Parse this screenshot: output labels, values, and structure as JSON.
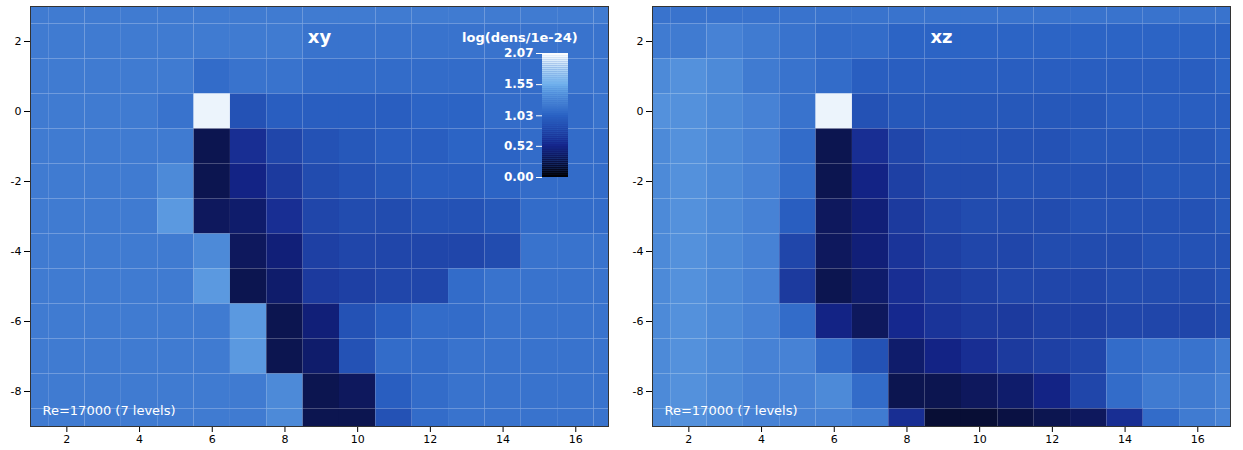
{
  "chart_data": [
    {
      "type": "heatmap",
      "title": "xy",
      "annotation": "Re=17000 (7 levels)",
      "x": [
        1,
        2,
        3,
        4,
        5,
        6,
        7,
        8,
        9,
        10,
        11,
        12,
        13,
        14,
        15,
        16,
        17
      ],
      "y": [
        3,
        2,
        1,
        0,
        -1,
        -2,
        -3,
        -4,
        -5,
        -6,
        -7,
        -8,
        -9
      ],
      "xlim": [
        1,
        16.9
      ],
      "ylim": [
        -9,
        3
      ],
      "xticks": [
        2,
        4,
        6,
        8,
        10,
        12,
        14,
        16
      ],
      "yticks": [
        -8,
        -6,
        -4,
        -2,
        0,
        2
      ],
      "colorbar": {
        "title": "log(dens/1e-24)",
        "range": [
          0,
          2.07
        ],
        "ticks": [
          {
            "value": 0,
            "label": "0.00"
          },
          {
            "value": 0.52,
            "label": "0.52"
          },
          {
            "value": 1.03,
            "label": "1.03"
          },
          {
            "value": 1.55,
            "label": "1.55"
          },
          {
            "value": 2.07,
            "label": "2.07"
          }
        ]
      },
      "values": [
        [
          1.2,
          1.2,
          1.2,
          1.2,
          1.2,
          1.2,
          1.2,
          1.2,
          1.2,
          1.2,
          1.2,
          1.2,
          1.2,
          1.2,
          1.2,
          1.2,
          1.2
        ],
        [
          1.2,
          1.2,
          1.2,
          1.2,
          1.2,
          1.2,
          1.2,
          1.2,
          1.15,
          1.15,
          1.15,
          1.15,
          1.15,
          1.15,
          1.15,
          1.15,
          1.15
        ],
        [
          1.2,
          1.2,
          1.2,
          1.2,
          1.2,
          1.1,
          1.15,
          1.15,
          1.1,
          1.1,
          1.1,
          1.1,
          1.1,
          1.1,
          1.1,
          1.15,
          1.15
        ],
        [
          1.2,
          1.2,
          1.2,
          1.2,
          1.15,
          2.0,
          0.9,
          1.0,
          1.0,
          1.0,
          1.0,
          1.05,
          1.05,
          1.1,
          1.1,
          1.1,
          1.15
        ],
        [
          1.2,
          1.2,
          1.2,
          1.2,
          1.2,
          0.3,
          0.6,
          0.8,
          0.9,
          0.95,
          1.0,
          1.0,
          1.05,
          1.05,
          1.1,
          1.1,
          1.1
        ],
        [
          1.2,
          1.2,
          1.2,
          1.2,
          1.3,
          0.3,
          0.5,
          0.7,
          0.85,
          0.9,
          0.95,
          1.0,
          1.0,
          1.05,
          1.1,
          1.1,
          1.1
        ],
        [
          1.2,
          1.2,
          1.2,
          1.2,
          1.4,
          0.35,
          0.4,
          0.6,
          0.8,
          0.85,
          0.85,
          0.9,
          0.9,
          0.95,
          1.1,
          1.1,
          1.1
        ],
        [
          1.2,
          1.2,
          1.2,
          1.2,
          1.2,
          1.3,
          0.35,
          0.45,
          0.75,
          0.8,
          0.8,
          0.8,
          0.8,
          0.85,
          1.15,
          1.15,
          1.15
        ],
        [
          1.2,
          1.2,
          1.2,
          1.2,
          1.2,
          1.4,
          0.3,
          0.4,
          0.7,
          0.75,
          0.8,
          0.8,
          1.1,
          1.15,
          1.15,
          1.15,
          1.15
        ],
        [
          1.2,
          1.2,
          1.2,
          1.2,
          1.2,
          1.2,
          1.4,
          0.3,
          0.45,
          0.9,
          1.0,
          1.1,
          1.1,
          1.15,
          1.15,
          1.15,
          1.15
        ],
        [
          1.2,
          1.2,
          1.2,
          1.2,
          1.2,
          1.2,
          1.4,
          0.3,
          0.4,
          0.9,
          1.1,
          1.1,
          1.15,
          1.15,
          1.15,
          1.15,
          1.15
        ],
        [
          1.2,
          1.2,
          1.2,
          1.2,
          1.2,
          1.2,
          1.2,
          1.3,
          0.3,
          0.35,
          1.0,
          1.1,
          1.15,
          1.15,
          1.15,
          1.15,
          1.15
        ],
        [
          1.2,
          1.2,
          1.2,
          1.2,
          1.2,
          1.2,
          1.2,
          1.3,
          0.3,
          0.3,
          0.9,
          1.1,
          1.15,
          1.15,
          1.15,
          1.15,
          1.15
        ]
      ]
    },
    {
      "type": "heatmap",
      "title": "xz",
      "annotation": "Re=17000 (7 levels)",
      "x": [
        1,
        2,
        3,
        4,
        5,
        6,
        7,
        8,
        9,
        10,
        11,
        12,
        13,
        14,
        15,
        16,
        17
      ],
      "y": [
        3,
        2,
        1,
        0,
        -1,
        -2,
        -3,
        -4,
        -5,
        -6,
        -7,
        -8,
        -9
      ],
      "xlim": [
        1,
        16.9
      ],
      "ylim": [
        -9,
        3
      ],
      "xticks": [
        2,
        4,
        6,
        8,
        10,
        12,
        14,
        16
      ],
      "yticks": [
        -8,
        -6,
        -4,
        -2,
        0,
        2
      ],
      "values": [
        [
          1.15,
          1.15,
          1.15,
          1.15,
          1.15,
          1.15,
          1.15,
          1.15,
          1.15,
          1.15,
          1.15,
          1.15,
          1.15,
          1.15,
          1.15,
          1.15,
          1.15
        ],
        [
          1.2,
          1.2,
          1.25,
          1.2,
          1.15,
          1.1,
          1.1,
          1.05,
          1.05,
          1.05,
          1.05,
          1.05,
          1.05,
          1.05,
          1.05,
          1.05,
          1.05
        ],
        [
          1.3,
          1.35,
          1.3,
          1.2,
          1.15,
          1.1,
          1.0,
          1.0,
          1.0,
          1.0,
          1.0,
          1.0,
          1.0,
          1.0,
          1.0,
          1.0,
          1.05
        ],
        [
          1.35,
          1.35,
          1.3,
          1.25,
          1.15,
          2.0,
          0.9,
          0.95,
          0.95,
          0.95,
          0.95,
          0.95,
          0.95,
          1.0,
          1.0,
          1.0,
          1.0
        ],
        [
          1.3,
          1.35,
          1.3,
          1.25,
          1.1,
          0.3,
          0.6,
          0.8,
          0.9,
          0.9,
          0.9,
          0.9,
          0.95,
          0.95,
          0.95,
          0.95,
          1.0
        ],
        [
          1.3,
          1.35,
          1.3,
          1.25,
          1.1,
          0.3,
          0.5,
          0.75,
          0.85,
          0.85,
          0.9,
          0.9,
          0.9,
          0.9,
          0.95,
          0.95,
          0.95
        ],
        [
          1.3,
          1.35,
          1.3,
          1.25,
          1.0,
          0.35,
          0.45,
          0.7,
          0.8,
          0.85,
          0.85,
          0.85,
          0.9,
          0.9,
          0.9,
          0.9,
          0.95
        ],
        [
          1.3,
          1.35,
          1.3,
          1.25,
          0.8,
          0.35,
          0.45,
          0.65,
          0.75,
          0.8,
          0.8,
          0.85,
          0.85,
          0.85,
          0.9,
          0.9,
          0.9
        ],
        [
          1.3,
          1.35,
          1.3,
          1.25,
          0.7,
          0.3,
          0.4,
          0.6,
          0.7,
          0.75,
          0.8,
          0.8,
          0.8,
          0.85,
          0.85,
          0.85,
          0.9
        ],
        [
          1.3,
          1.35,
          1.3,
          1.25,
          1.1,
          0.5,
          0.35,
          0.55,
          0.65,
          0.7,
          0.7,
          0.75,
          0.75,
          0.8,
          0.8,
          0.8,
          0.85
        ],
        [
          1.3,
          1.35,
          1.3,
          1.25,
          1.25,
          1.1,
          0.9,
          0.4,
          0.5,
          0.6,
          0.7,
          0.75,
          0.8,
          1.1,
          1.15,
          1.15,
          1.2
        ],
        [
          1.3,
          1.35,
          1.3,
          1.25,
          1.25,
          1.3,
          1.1,
          0.3,
          0.3,
          0.35,
          0.4,
          0.5,
          0.8,
          1.1,
          1.2,
          1.2,
          1.25
        ],
        [
          1.3,
          1.35,
          1.3,
          1.25,
          1.25,
          1.25,
          1.2,
          0.6,
          0.2,
          0.2,
          0.25,
          0.3,
          0.35,
          0.6,
          1.1,
          1.2,
          1.25
        ]
      ]
    }
  ]
}
